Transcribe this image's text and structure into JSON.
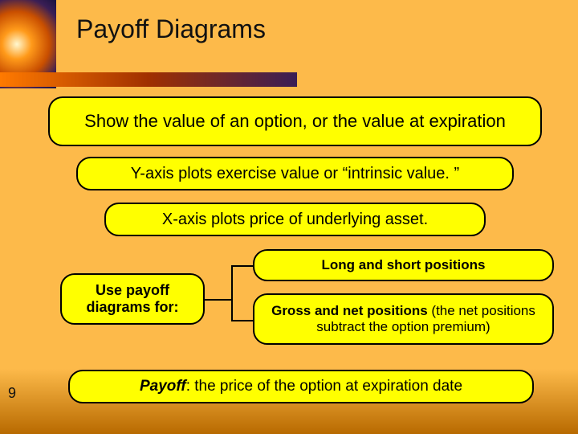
{
  "title": "Payoff Diagrams",
  "boxes": {
    "main": "Show the value of an option, or the value at expiration",
    "yaxis": "Y-axis plots exercise value or “intrinsic value. ”",
    "xaxis": "X-axis plots price of underlying asset.",
    "use_label": "Use payoff diagrams for:",
    "long_short": "Long and short positions",
    "gross_net_bold": "Gross and net positions",
    "gross_net_rest": " (the net positions subtract the option premium)",
    "payoff_em": "Payoff",
    "payoff_rest": ": the price of the option at expiration date"
  },
  "page_number": "9",
  "colors": {
    "box_bg": "#ffff00",
    "box_border": "#000000",
    "slide_bg_top": "#fdba4a",
    "slide_bg_bottom": "#b86a00"
  }
}
